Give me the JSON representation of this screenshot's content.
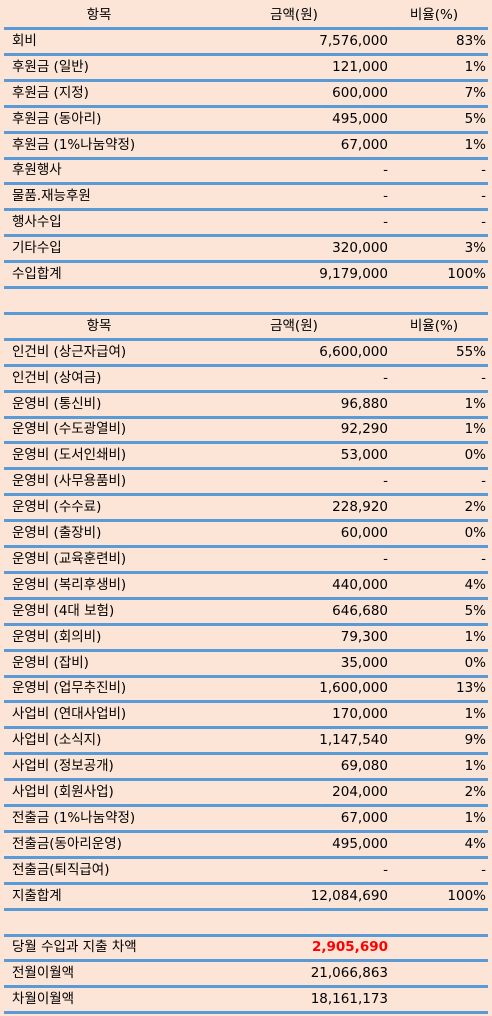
{
  "sections": [
    {
      "header": [
        "항목",
        "금액(원)",
        "비율(%)"
      ],
      "rows": [
        [
          "회비",
          "7,576,000",
          "83%"
        ],
        [
          "후원금 (일반)",
          "121,000",
          "1%"
        ],
        [
          "후원금 (지정)",
          "600,000",
          "7%"
        ],
        [
          "후원금 (동아리)",
          "495,000",
          "5%"
        ],
        [
          "후원금 (1%나눔약정)",
          "67,000",
          "1%"
        ],
        [
          "후원행사",
          "-",
          "-"
        ],
        [
          "물품.재능후원",
          "-",
          "-"
        ],
        [
          "행사수입",
          "-",
          "-"
        ],
        [
          "기타수입",
          "320,000",
          "3%"
        ],
        [
          "수입합계",
          "9,179,000",
          "100%"
        ]
      ]
    },
    {
      "header": [
        "항목",
        "금액(원)",
        "비율(%)"
      ],
      "rows": [
        [
          "인건비 (상근자급여)",
          "6,600,000",
          "55%"
        ],
        [
          "인건비 (상여금)",
          "-",
          "-"
        ],
        [
          "운영비 (통신비)",
          "96,880",
          "1%"
        ],
        [
          "운영비 (수도광열비)",
          "92,290",
          "1%"
        ],
        [
          "운영비 (도서인쇄비)",
          "53,000",
          "0%"
        ],
        [
          "운영비 (사무용품비)",
          "-",
          "-"
        ],
        [
          "운영비 (수수료)",
          "228,920",
          "2%"
        ],
        [
          "운영비 (출장비)",
          "60,000",
          "0%"
        ],
        [
          "운영비 (교육훈련비)",
          "-",
          "-"
        ],
        [
          "운영비 (복리후생비)",
          "440,000",
          "4%"
        ],
        [
          "운영비 (4대 보험)",
          "646,680",
          "5%"
        ],
        [
          "운영비 (회의비)",
          "79,300",
          "1%"
        ],
        [
          "운영비 (잡비)",
          "35,000",
          "0%"
        ],
        [
          "운영비 (업무추진비)",
          "1,600,000",
          "13%"
        ],
        [
          "사업비 (연대사업비)",
          "170,000",
          "1%"
        ],
        [
          "사업비 (소식지)",
          "1,147,540",
          "9%"
        ],
        [
          "사업비 (정보공개)",
          "69,080",
          "1%"
        ],
        [
          "사업비 (회원사업)",
          "204,000",
          "2%"
        ],
        [
          "전출금 (1%나눔약정)",
          "67,000",
          "1%"
        ],
        [
          "전출금(동아리운영)",
          "495,000",
          "4%"
        ],
        [
          "전출금(퇴직급여)",
          "-",
          "-"
        ],
        [
          "지출합계",
          "12,084,690",
          "100%"
        ]
      ]
    }
  ],
  "summary": [
    [
      "당월 수입과 지출 차액",
      "2,905,690"
    ],
    [
      "전월이월액",
      "21,066,863"
    ],
    [
      "차월이월액",
      "18,161,173"
    ]
  ]
}
